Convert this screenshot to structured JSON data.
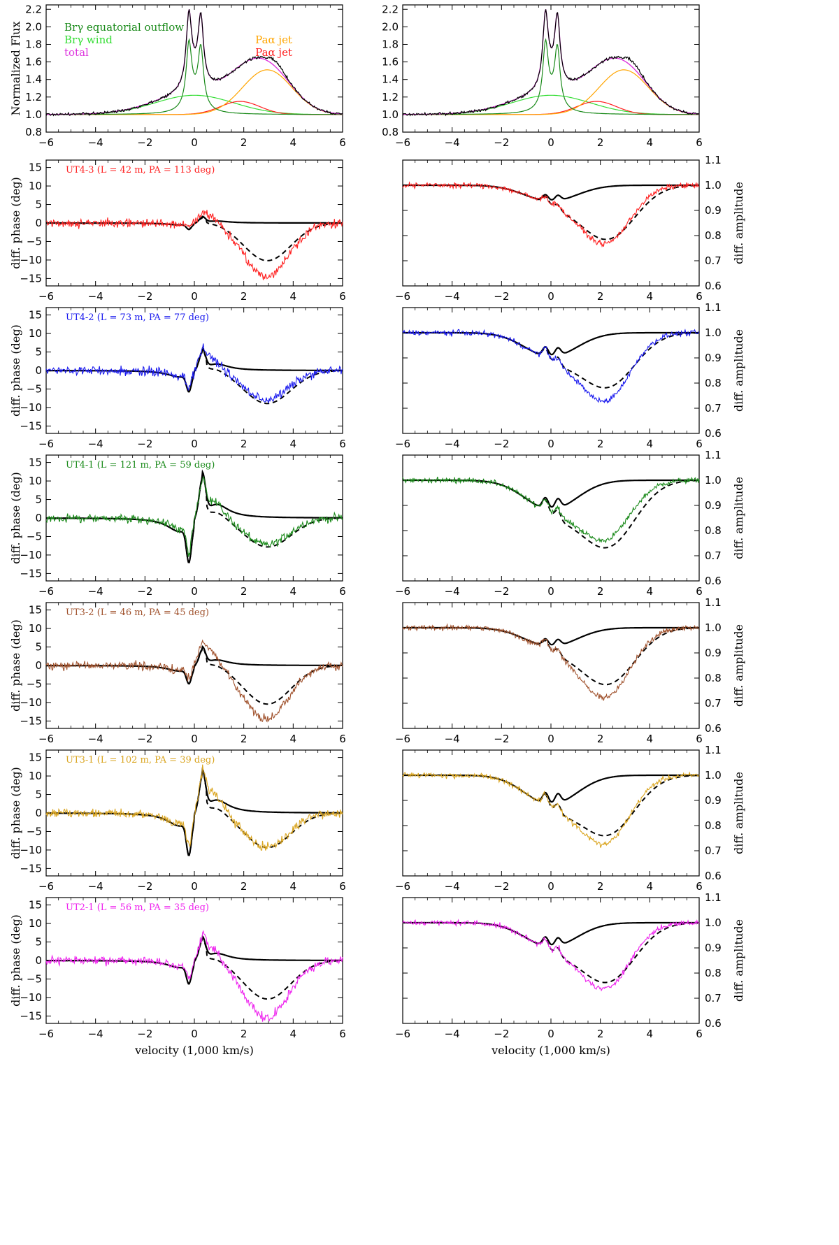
{
  "figure": {
    "x_tick_labels": [
      "−6",
      "−4",
      "−2",
      "0",
      "2",
      "4",
      "6"
    ],
    "xlabel": "velocity (1,000 km/s)",
    "spectrum_ylabel": "Normalized Flux",
    "phase_ylabel": "diff. phase (deg)",
    "amplitude_ylabel": "diff. amplitude"
  },
  "chart_data": {
    "spectrum": {
      "type": "line",
      "xlim": [
        -6,
        6
      ],
      "ylim": [
        0.8,
        2.25
      ],
      "y_ticks": [
        "0.8",
        "1.0",
        "1.2",
        "1.4",
        "1.6",
        "1.8",
        "2.0",
        "2.2"
      ],
      "legend": [
        {
          "label": "Brγ equatorial outflow",
          "color": "#1a8a1a"
        },
        {
          "label": "Brγ wind",
          "color": "#33dd33"
        },
        {
          "label": "total",
          "color": "#dd33dd"
        },
        {
          "label": "Paα jet",
          "color": "#ffa500"
        },
        {
          "label": "Paα jet",
          "color": "#ff2020"
        }
      ],
      "components": {
        "equatorial_outflow": {
          "color": "#1a8a1a",
          "peaks": [
            {
              "center": -0.22,
              "width": 0.13,
              "amp": 0.78
            },
            {
              "center": 0.26,
              "width": 0.13,
              "amp": 0.73
            },
            {
              "center": 0.0,
              "width": 0.42,
              "amp": 0.18
            }
          ]
        },
        "wind": {
          "color": "#33dd33",
          "center": 0.0,
          "sigma": 1.6,
          "amp": 0.22
        },
        "jet_paa_orange": {
          "color": "#ffa500",
          "center": 2.95,
          "sigma": 1.0,
          "amp": 0.51
        },
        "jet_paa_red": {
          "color": "#ff2020",
          "center": 1.85,
          "sigma": 0.8,
          "amp": 0.15
        }
      }
    },
    "phase_ylim": [
      -17,
      17
    ],
    "phase_y_ticks": [
      "−15",
      "−10",
      "−5",
      "0",
      "5",
      "10",
      "15"
    ],
    "amplitude_ylim": [
      0.6,
      1.1
    ],
    "amplitude_y_ticks": [
      "0.6",
      "0.7",
      "0.8",
      "0.9",
      "1.0",
      "1.1"
    ],
    "baselines": [
      {
        "label": "UT4-3 (L = 42 m, PA = 113 deg)",
        "color": "#ff2222",
        "phase_disk_amp": 1.5,
        "phase_jet_min": -10.2,
        "phase_obs_min": -14.5,
        "phase_obs_blue_bump": 4.5,
        "amp_solid_min": 0.94,
        "amp_dashed_min": 0.78,
        "amp_obs_min": 0.75
      },
      {
        "label": "UT4-2 (L = 73 m, PA = 77 deg)",
        "color": "#1818ee",
        "phase_disk_amp": 5.0,
        "phase_jet_min": -9.0,
        "phase_obs_min": -8.0,
        "phase_obs_blue_bump": 5.0,
        "amp_solid_min": 0.91,
        "amp_dashed_min": 0.78,
        "amp_obs_min": 0.71
      },
      {
        "label": "UT4-1 (L = 121 m, PA = 59 deg)",
        "color": "#1a8a1a",
        "phase_disk_amp": 10.5,
        "phase_jet_min": -8.0,
        "phase_obs_min": -7.5,
        "phase_obs_blue_bump": 5.0,
        "amp_solid_min": 0.89,
        "amp_dashed_min": 0.73,
        "amp_obs_min": 0.75
      },
      {
        "label": "UT3-2 (L = 46 m, PA = 45 deg)",
        "color": "#a0522d",
        "phase_disk_amp": 4.3,
        "phase_jet_min": -10.5,
        "phase_obs_min": -14.5,
        "phase_obs_blue_bump": 7.0,
        "amp_solid_min": 0.93,
        "amp_dashed_min": 0.77,
        "amp_obs_min": 0.7
      },
      {
        "label": "UT3-1 (L = 102 m, PA = 39 deg)",
        "color": "#daa520",
        "phase_disk_amp": 10.0,
        "phase_jet_min": -9.5,
        "phase_obs_min": -9.5,
        "phase_obs_blue_bump": 8.0,
        "amp_solid_min": 0.89,
        "amp_dashed_min": 0.76,
        "amp_obs_min": 0.71
      },
      {
        "label": "UT2-1 (L = 56 m, PA = 35 deg)",
        "color": "#ee22ee",
        "phase_disk_amp": 5.5,
        "phase_jet_min": -10.5,
        "phase_obs_min": -15.5,
        "phase_obs_blue_bump": 6.0,
        "amp_solid_min": 0.91,
        "amp_dashed_min": 0.76,
        "amp_obs_min": 0.72
      }
    ]
  }
}
